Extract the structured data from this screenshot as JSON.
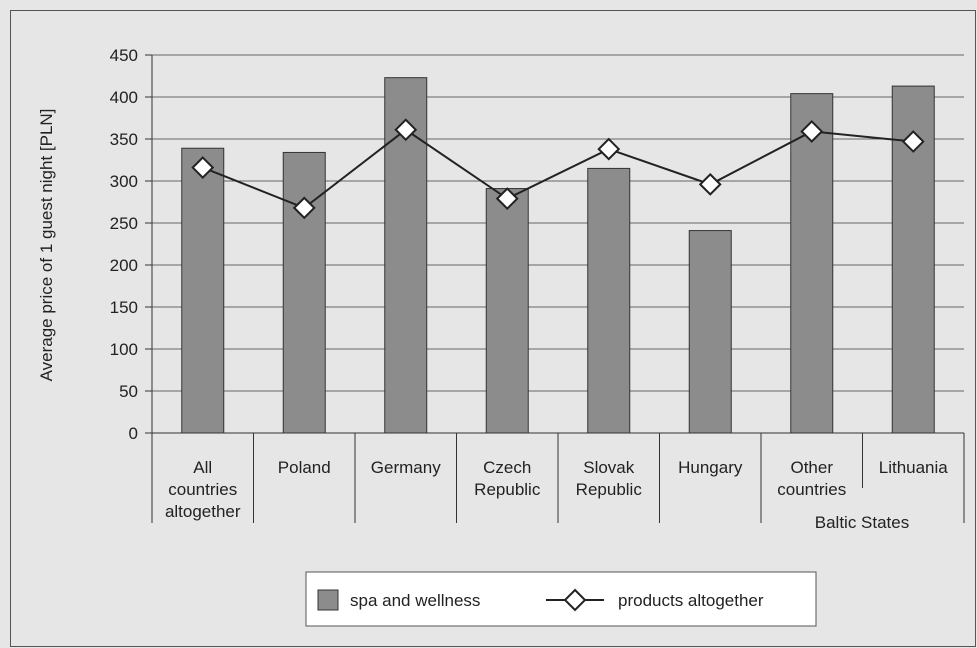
{
  "chart_data": {
    "type": "bar",
    "ylabel": "Average price of 1 guest night [PLN]",
    "xlabel": "",
    "ylim": [
      0,
      450
    ],
    "yticks": [
      0,
      50,
      100,
      150,
      200,
      250,
      300,
      350,
      400,
      450
    ],
    "grid": true,
    "legend_position": "bottom",
    "categories": [
      [
        "All",
        "countries",
        "altogether"
      ],
      [
        "Poland"
      ],
      [
        "Germany"
      ],
      [
        "Czech",
        "Republic"
      ],
      [
        "Slovak",
        "Republic"
      ],
      [
        "Hungary"
      ],
      [
        "Other",
        "countries"
      ],
      [
        "Lithuania"
      ]
    ],
    "group_label": "Baltic States",
    "series": [
      {
        "name": "spa and wellness",
        "type": "bar",
        "color": "#8c8c8c",
        "values": [
          339,
          334,
          423,
          291,
          315,
          241,
          404,
          413
        ]
      },
      {
        "name": "products altogether",
        "type": "line",
        "color": "#222222",
        "marker": "diamond",
        "values": [
          316,
          268,
          361,
          279,
          338,
          296,
          359,
          347
        ]
      }
    ]
  }
}
